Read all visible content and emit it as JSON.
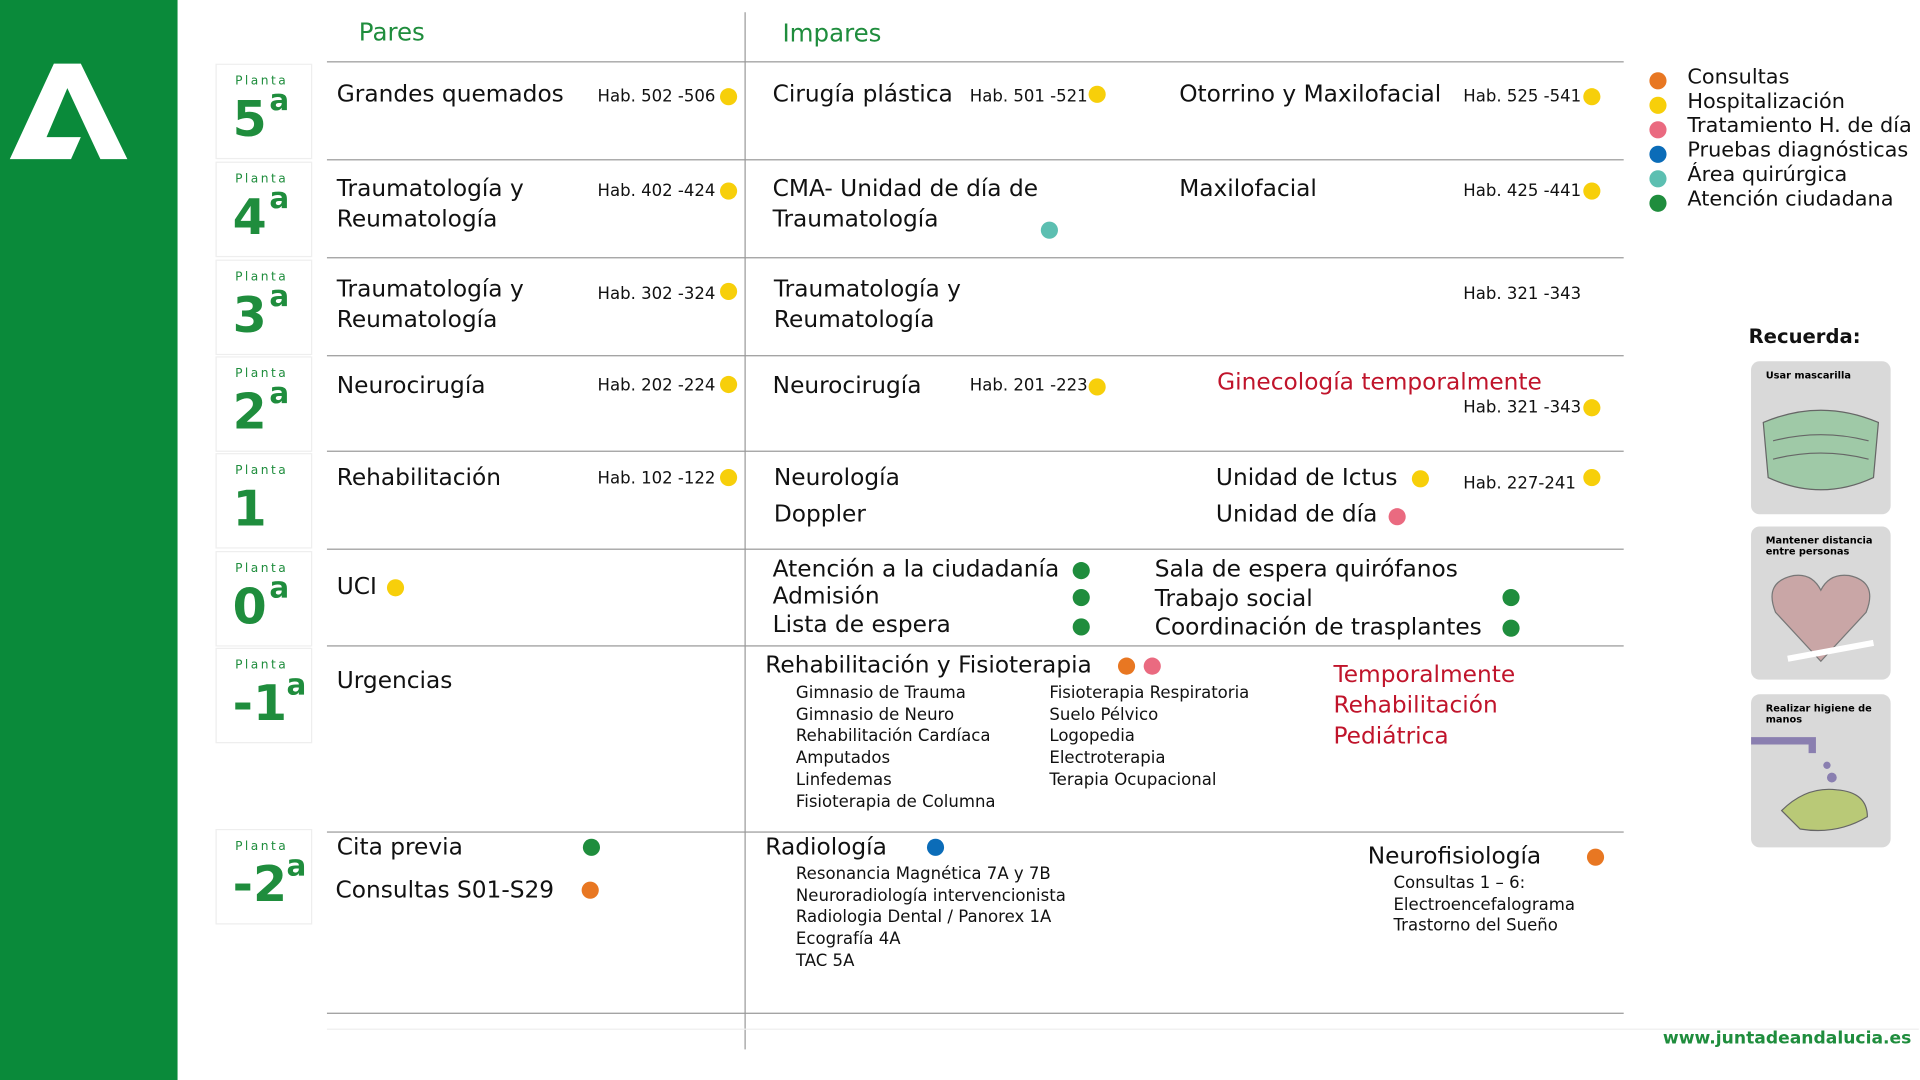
{
  "header": {
    "pares": "Pares",
    "impares": "Impares"
  },
  "floors": [
    {
      "planta": "Planta",
      "level": "5",
      "ordinal": "a",
      "items": [
        "Grandes quemados",
        "Hab. 502 -506",
        "Cirugía plástica",
        "Hab. 501 -521",
        "Otorrino y Maxilofacial",
        "Hab. 525 -541"
      ]
    },
    {
      "planta": "Planta",
      "level": "4",
      "ordinal": "a",
      "items": [
        "Traumatología y Reumatología",
        "Hab. 402 -424",
        "CMA- Unidad de día de Traumatología",
        "Maxilofacial",
        "Hab. 425 -441"
      ]
    },
    {
      "planta": "Planta",
      "level": "3",
      "ordinal": "a",
      "items": [
        "Traumatología y Reumatología",
        "Hab. 302 -324",
        "Traumatología y Reumatología",
        "Hab. 321 -343"
      ]
    },
    {
      "planta": "Planta",
      "level": "2",
      "ordinal": "a",
      "items": [
        "Neurocirugía",
        "Hab. 202 -224",
        "Neurocirugía",
        "Hab. 201 -223",
        "Ginecología temporalmente",
        "Hab. 321 -343"
      ]
    },
    {
      "planta": "Planta",
      "level": "1",
      "items": [
        "Rehabilitación",
        "Hab. 102 -122",
        "Neurología",
        "Doppler",
        "Unidad de Ictus",
        "Hab.  227-241",
        "Unidad de día"
      ]
    },
    {
      "planta": "Planta",
      "level": "0",
      "ordinal": "a",
      "items": [
        "UCI",
        "Atención a la ciudadanía",
        "Admisión",
        "Lista de espera",
        "Sala de espera quirófanos",
        "Trabajo social",
        "Coordinación de trasplantes"
      ]
    },
    {
      "planta": "Planta",
      "level": "-1",
      "ordinal": "a",
      "items": [
        "Urgencias",
        "Rehabilitación y Fisioterapia",
        "Gimnasio de Trauma",
        "Gimnasio de Neuro",
        "Rehabilitación Cardíaca",
        "Amputados",
        "Linfedemas",
        "Fisioterapia de Columna",
        "Fisioterapia Respiratoria",
        "Suelo Pélvico",
        "Logopedia",
        "Electroterapia",
        "Terapia Ocupacional",
        "Temporalmente Rehabilitación Pediátrica"
      ]
    },
    {
      "planta": "Planta",
      "level": "-2",
      "ordinal": "a",
      "items": [
        "Cita previa",
        "Consultas  S01-S29",
        "Radiología",
        "Resonancia Magnética 7A y 7B",
        "Neuroradiología intervencionista",
        "Radiologia Dental / Panorex 1A",
        "Ecografía 4A",
        "TAC 5A",
        "Neurofisiología",
        "Consultas 1 – 6:",
        "Electroencefalograma",
        "Trastorno del Sueño"
      ]
    }
  ],
  "legend": [
    {
      "name": "Consultas",
      "color": "#e87722"
    },
    {
      "name": "Hospitalización",
      "color": "#f7cf0a"
    },
    {
      "name": "Tratamiento H. de día",
      "color": "#ea6a80"
    },
    {
      "name": "Pruebas diagnósticas",
      "color": "#0b6cb8"
    },
    {
      "name": "Área quirúrgica",
      "color": "#5cbfb1"
    },
    {
      "name": "Atención ciudadana",
      "color": "#1f8d3d"
    }
  ],
  "reminder": {
    "title": "Recuerda:",
    "items": [
      "Usar mascarilla",
      "Mantener distancia entre personas",
      "Realizar higiene de manos"
    ]
  },
  "footer": "www.juntadeandalucia.es"
}
